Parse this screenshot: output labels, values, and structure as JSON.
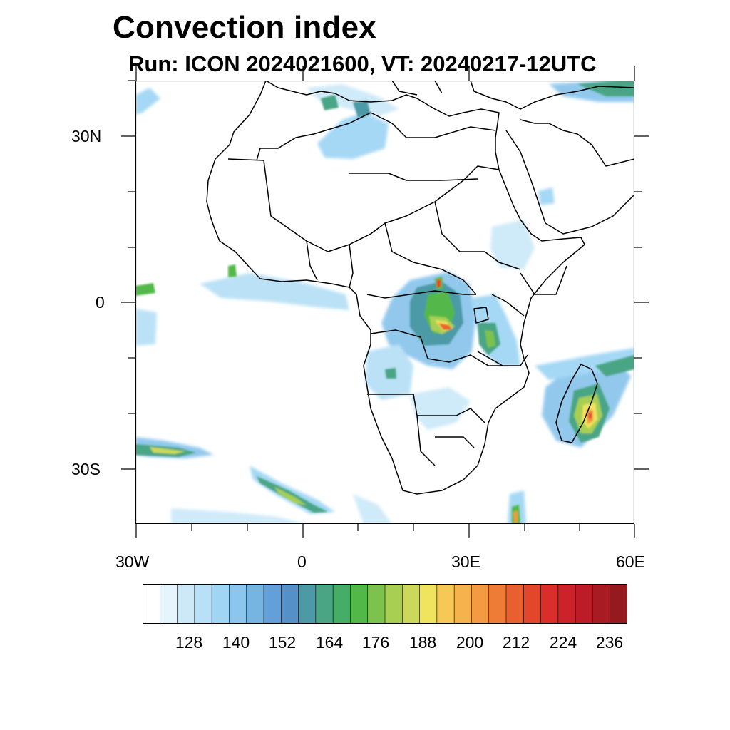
{
  "header": {
    "title": "Convection index",
    "subtitle": "Run: ICON 2024021600,  VT: 20240217-12UTC"
  },
  "axes": {
    "lat_labels": [
      "30N",
      "0",
      "30S"
    ],
    "lon_labels": [
      "30W",
      "0",
      "30E",
      "60E"
    ]
  },
  "colorbar": {
    "labels": [
      "128",
      "140",
      "152",
      "164",
      "176",
      "188",
      "200",
      "212",
      "224",
      "236"
    ],
    "colors": [
      "#ffffff",
      "#e6f4fc",
      "#cde9f8",
      "#b8e0f6",
      "#a0d6f4",
      "#8cc6ec",
      "#76b4e2",
      "#639fd8",
      "#5591c8",
      "#4c9aa6",
      "#4aa585",
      "#45ad66",
      "#52b848",
      "#7dc24c",
      "#a8cf52",
      "#cbd85a",
      "#f0e45e",
      "#f6c956",
      "#f5b24d",
      "#f39a43",
      "#ee7c36",
      "#e8602f",
      "#e2462b",
      "#d92e2a",
      "#cc222a",
      "#bb1c27",
      "#a81b23",
      "#941a1f"
    ]
  }
}
